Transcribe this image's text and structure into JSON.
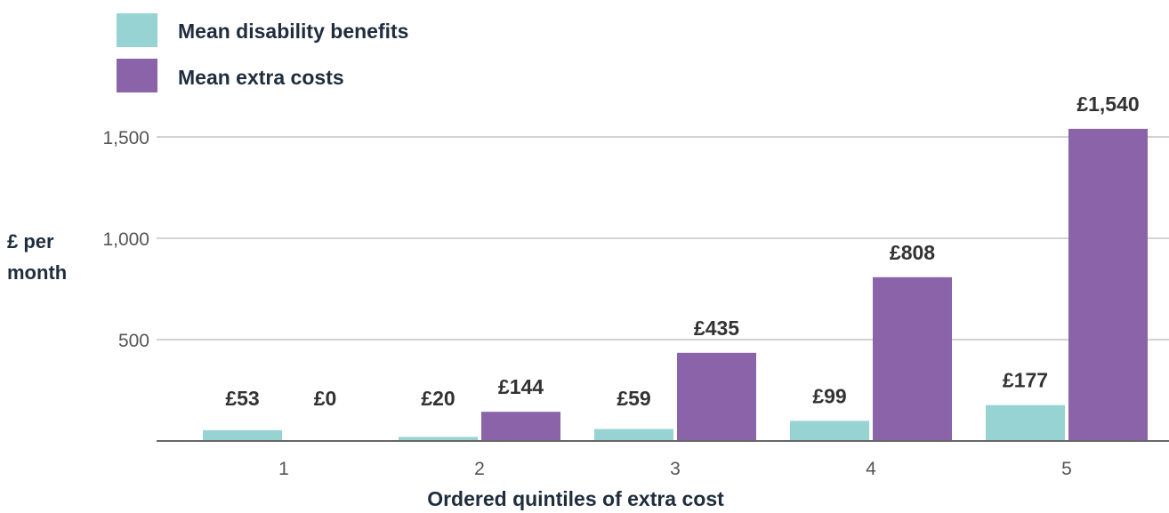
{
  "chart_data": {
    "type": "bar",
    "categories": [
      "1",
      "2",
      "3",
      "4",
      "5"
    ],
    "series": [
      {
        "name": "Mean disability benefits",
        "values": [
          53,
          20,
          59,
          99,
          177
        ],
        "labels": [
          "£53",
          "£20",
          "£59",
          "£99",
          "£177"
        ],
        "color": "#96d3d2"
      },
      {
        "name": "Mean extra costs",
        "values": [
          0,
          144,
          435,
          808,
          1540
        ],
        "labels": [
          "£0",
          "£144",
          "£435",
          "£808",
          "£1,540"
        ],
        "color": "#8a63a8"
      }
    ],
    "xlabel": "Ordered quintiles of extra cost",
    "ylabel": [
      "£ per",
      "month"
    ],
    "yticks": [
      500,
      1000,
      1500
    ],
    "ytick_labels": [
      "500",
      "1,000",
      "1,500"
    ],
    "ylim": [
      0,
      1600
    ],
    "grid": true,
    "legend_position": "top-left"
  }
}
